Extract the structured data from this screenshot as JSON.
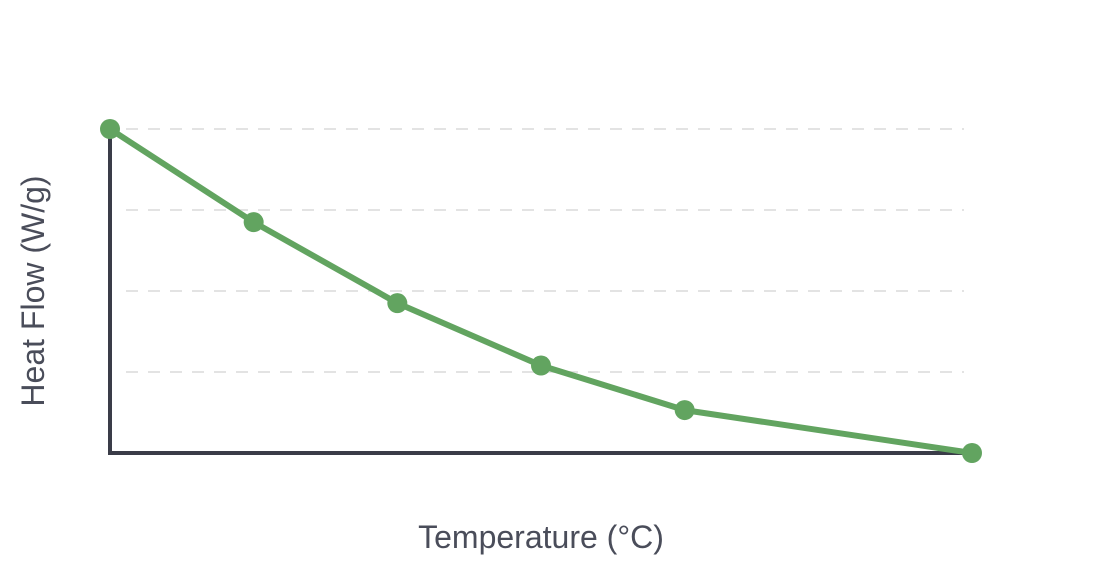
{
  "chart_data": {
    "type": "line",
    "title": "",
    "xlabel": "Temperature (°C)",
    "ylabel": "Heat Flow (W/g)",
    "x": [
      0,
      1,
      2,
      3,
      4,
      6
    ],
    "series": [
      {
        "values": [
          4.0,
          2.85,
          1.85,
          1.08,
          0.53,
          0.0
        ]
      }
    ],
    "xlim": [
      0,
      6
    ],
    "ylim": [
      0,
      4
    ],
    "y_gridlines": [
      1,
      2,
      3,
      4
    ],
    "grid": "horizontal-dashed",
    "tick_labels_shown": false,
    "legend": "none",
    "colors": {
      "line": "#62a460",
      "axis": "#3a3c48",
      "grid": "#e3e3e3",
      "text": "#4a4d5a"
    }
  }
}
